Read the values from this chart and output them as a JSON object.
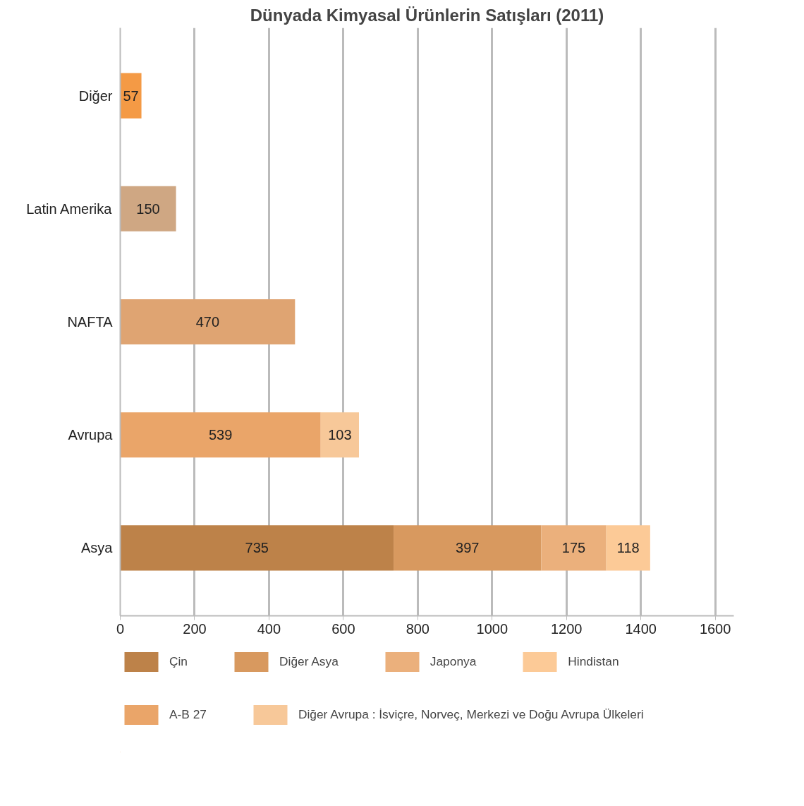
{
  "chart_data": {
    "type": "bar",
    "orientation": "horizontal",
    "stacked": true,
    "title": "Dünyada Kimyasal Ürünlerin Satışları (2011)",
    "categories": [
      "Diğer",
      "Latin Amerika",
      "NAFTA",
      "Avrupa",
      "Asya"
    ],
    "series": [
      {
        "name": "Çin",
        "color": "#bd8249",
        "values": [
          null,
          null,
          null,
          null,
          735
        ]
      },
      {
        "name": "Diğer Asya",
        "color": "#d8995f",
        "values": [
          null,
          null,
          null,
          null,
          397
        ]
      },
      {
        "name": "Japonya",
        "color": "#ebb07c",
        "values": [
          null,
          null,
          null,
          null,
          175
        ]
      },
      {
        "name": "Hindistan",
        "color": "#fcca97",
        "values": [
          null,
          null,
          null,
          null,
          118
        ]
      },
      {
        "name": "A-B 27",
        "color": "#eaa569",
        "values": [
          null,
          null,
          null,
          539,
          null
        ]
      },
      {
        "name": "Diğer Avrupa : İsviçre, Norveç, Merkezi ve Doğu Avrupa Ülkeleri",
        "color": "#f7c899",
        "values": [
          null,
          null,
          null,
          103,
          null
        ]
      },
      {
        "color": "#dfa472",
        "values": [
          null,
          null,
          470,
          null,
          null
        ]
      },
      {
        "color": "#cfa783",
        "values": [
          null,
          150,
          null,
          null,
          null
        ]
      },
      {
        "color": "#f49a45",
        "values": [
          57,
          null,
          null,
          null,
          null
        ]
      }
    ],
    "xlim": [
      0,
      1650
    ],
    "xticks": [
      0,
      200,
      400,
      600,
      800,
      1000,
      1200,
      1400,
      1600
    ],
    "grid": "x",
    "legend": "bottom",
    "data_labels": true
  }
}
